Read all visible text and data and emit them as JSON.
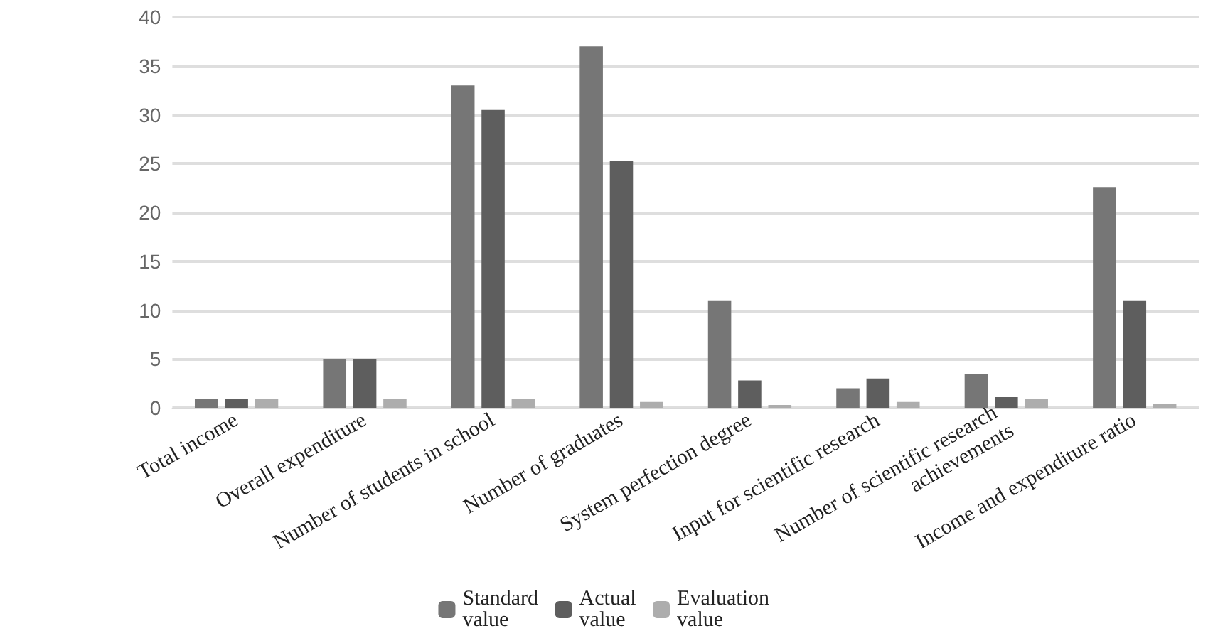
{
  "chart_data": {
    "type": "bar",
    "categories": [
      "Total income",
      "Overall expenditure",
      "Number of students in school",
      "Number of graduates",
      "System perfection degree",
      "Input for scientific research",
      "Number of scientific research achievements",
      "Income and expenditure ratio"
    ],
    "series": [
      {
        "name": "Standard value",
        "color": "#767676",
        "values": [
          0.9,
          5,
          33,
          37,
          11,
          2,
          3.5,
          22.6
        ]
      },
      {
        "name": "Actual value",
        "color": "#5e5e5e",
        "values": [
          0.9,
          5,
          30.5,
          25.3,
          2.8,
          3,
          1.1,
          11
        ]
      },
      {
        "name": "Evaluation value",
        "color": "#adadad",
        "values": [
          0.9,
          0.9,
          0.9,
          0.6,
          0.3,
          0.6,
          0.9,
          0.4
        ]
      }
    ],
    "ylim": [
      0,
      40
    ],
    "yticks": [
      0,
      5,
      10,
      15,
      20,
      25,
      30,
      35,
      40
    ],
    "grid": "y",
    "legend": "bottom"
  }
}
